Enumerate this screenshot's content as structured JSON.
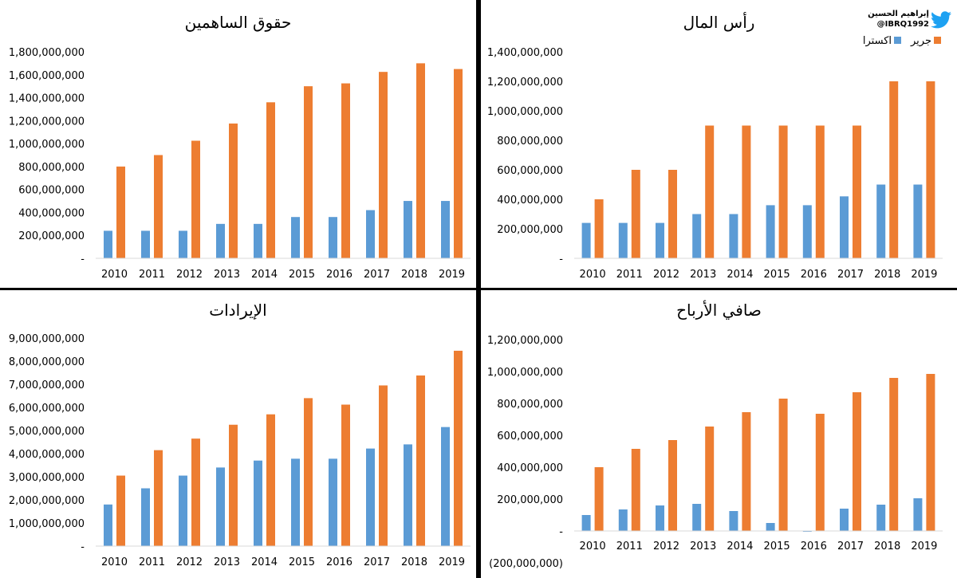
{
  "credit": {
    "name": "إبراهيم الحسين",
    "handle": "@IBRQ1992",
    "icon": "twitter-bird-icon"
  },
  "legend": {
    "items": [
      {
        "label": "جرير",
        "color": "#ED7D31"
      },
      {
        "label": "اكسترا",
        "color": "#5B9BD5"
      }
    ]
  },
  "chart_data": [
    {
      "type": "bar",
      "title": "حقوق الساهمين",
      "categories": [
        "2010",
        "2011",
        "2012",
        "2013",
        "2014",
        "2015",
        "2016",
        "2017",
        "2018",
        "2019"
      ],
      "series": [
        {
          "name": "اكسترا",
          "color": "#5B9BD5",
          "values": [
            240000000,
            240000000,
            240000000,
            300000000,
            300000000,
            360000000,
            360000000,
            420000000,
            500000000,
            500000000
          ]
        },
        {
          "name": "جرير",
          "color": "#ED7D31",
          "values": [
            800000000,
            900000000,
            1025000000,
            1175000000,
            1360000000,
            1500000000,
            1525000000,
            1625000000,
            1700000000,
            1650000000
          ]
        }
      ],
      "ylim": [
        0,
        1800000000
      ],
      "yticks": [
        "-",
        "200,000,000",
        "400,000,000",
        "600,000,000",
        "800,000,000",
        "1,000,000,000",
        "1,200,000,000",
        "1,400,000,000",
        "1,600,000,000",
        "1,800,000,000"
      ],
      "xlabel": "",
      "ylabel": "",
      "grid": false
    },
    {
      "type": "bar",
      "title": "رأس المال",
      "categories": [
        "2010",
        "2011",
        "2012",
        "2013",
        "2014",
        "2015",
        "2016",
        "2017",
        "2018",
        "2019"
      ],
      "series": [
        {
          "name": "اكسترا",
          "color": "#5B9BD5",
          "values": [
            240000000,
            240000000,
            240000000,
            300000000,
            300000000,
            360000000,
            360000000,
            420000000,
            500000000,
            500000000
          ]
        },
        {
          "name": "جرير",
          "color": "#ED7D31",
          "values": [
            400000000,
            600000000,
            600000000,
            900000000,
            900000000,
            900000000,
            900000000,
            900000000,
            1200000000,
            1200000000
          ]
        }
      ],
      "ylim": [
        0,
        1400000000
      ],
      "yticks": [
        "-",
        "200,000,000",
        "400,000,000",
        "600,000,000",
        "800,000,000",
        "1,000,000,000",
        "1,200,000,000",
        "1,400,000,000"
      ],
      "legend": "top-right",
      "xlabel": "",
      "ylabel": "",
      "grid": false
    },
    {
      "type": "bar",
      "title": "الإيرادات",
      "categories": [
        "2010",
        "2011",
        "2012",
        "2013",
        "2014",
        "2015",
        "2016",
        "2017",
        "2018",
        "2019"
      ],
      "series": [
        {
          "name": "اكسترا",
          "color": "#5B9BD5",
          "values": [
            1800000000,
            2500000000,
            3050000000,
            3400000000,
            3700000000,
            3780000000,
            3780000000,
            4220000000,
            4400000000,
            5150000000
          ]
        },
        {
          "name": "جرير",
          "color": "#ED7D31",
          "values": [
            3050000000,
            4150000000,
            4650000000,
            5250000000,
            5700000000,
            6400000000,
            6120000000,
            6950000000,
            7380000000,
            8450000000
          ]
        }
      ],
      "ylim": [
        0,
        9000000000
      ],
      "yticks": [
        "-",
        "1,000,000,000",
        "2,000,000,000",
        "3,000,000,000",
        "4,000,000,000",
        "5,000,000,000",
        "6,000,000,000",
        "7,000,000,000",
        "8,000,000,000",
        "9,000,000,000"
      ],
      "xlabel": "",
      "ylabel": "",
      "grid": false
    },
    {
      "type": "bar",
      "title": "صافي الأرباح",
      "categories": [
        "2010",
        "2011",
        "2012",
        "2013",
        "2014",
        "2015",
        "2016",
        "2017",
        "2018",
        "2019"
      ],
      "series": [
        {
          "name": "اكسترا",
          "color": "#5B9BD5",
          "values": [
            100000000,
            135000000,
            160000000,
            170000000,
            125000000,
            50000000,
            -5000000,
            140000000,
            165000000,
            205000000
          ]
        },
        {
          "name": "جرير",
          "color": "#ED7D31",
          "values": [
            400000000,
            515000000,
            570000000,
            655000000,
            745000000,
            830000000,
            735000000,
            870000000,
            960000000,
            985000000
          ]
        }
      ],
      "ylim": [
        -200000000,
        1200000000
      ],
      "yticks": [
        "(200,000,000)",
        "-",
        "200,000,000",
        "400,000,000",
        "600,000,000",
        "800,000,000",
        "1,000,000,000",
        "1,200,000,000"
      ],
      "xlabel": "",
      "ylabel": "",
      "grid": false
    }
  ]
}
